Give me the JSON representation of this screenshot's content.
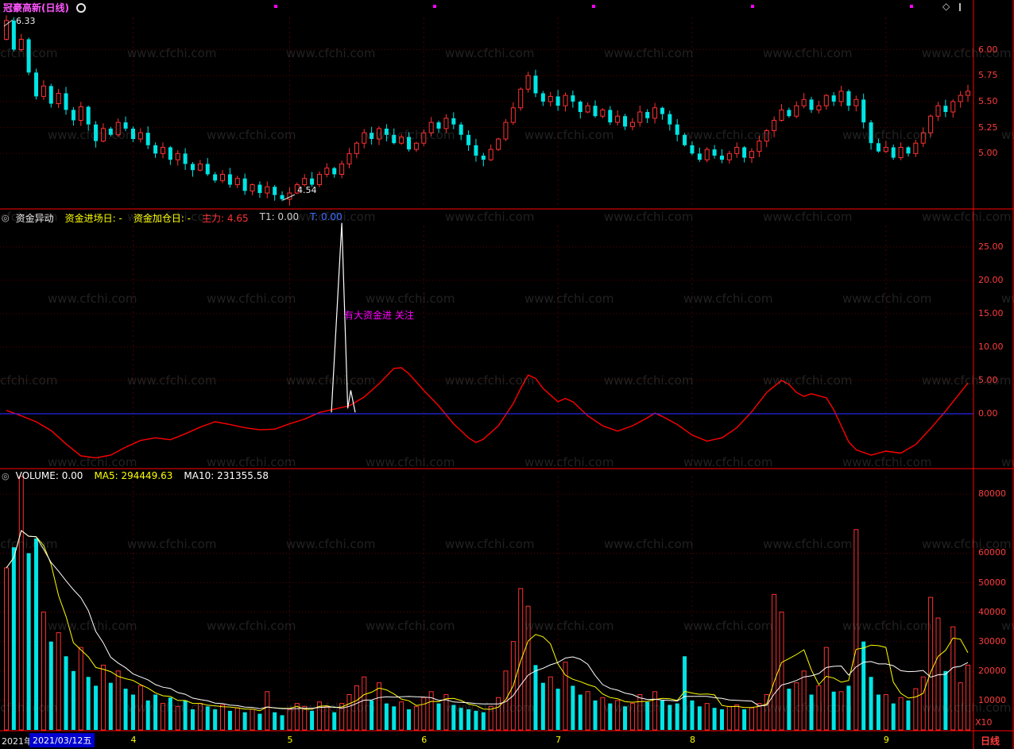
{
  "window": {
    "title": "冠豪高新(日线)",
    "period_label": "日线",
    "deco_diamond": "◇"
  },
  "watermark": {
    "text": "www.cfchi.com"
  },
  "colors": {
    "background": "#000000",
    "up": "#ff3232",
    "down": "#00e5e5",
    "axis_text": "#ff3c3c",
    "grid": "#5a0000",
    "divider": "#ff0000",
    "indicator_line": "#ff0000",
    "zero_line": "#2929ff",
    "spike_line": "#ffffff",
    "ma5": "#ffff00",
    "ma10": "#ffffff",
    "title_text": "#ff55ff",
    "highlight_bg": "#0000d0"
  },
  "price_panel": {
    "high_annotation": "6.33",
    "low_annotation": "4.54",
    "y_ticks": [
      {
        "label": "6.00",
        "value": 6.0
      },
      {
        "label": "5.75",
        "value": 5.75
      },
      {
        "label": "5.50",
        "value": 5.5
      },
      {
        "label": "5.25",
        "value": 5.25
      },
      {
        "label": "5.00",
        "value": 5.0
      }
    ]
  },
  "indicator_panel": {
    "name": "资金异动",
    "panel_icon": "◎",
    "labels": [
      {
        "text": "资金进场日: -",
        "color": "#ffff00"
      },
      {
        "text": "资金加仓日: -",
        "color": "#ffff00"
      },
      {
        "text": "主力: 4.65",
        "color": "#ff3232"
      },
      {
        "text": "T1: 0.00",
        "color": "#cccccc"
      },
      {
        "text": "T: 0.00",
        "color": "#3b6bff"
      }
    ],
    "annotation": "有大资金进 关注",
    "annotation_color": "#ff00ff",
    "y_ticks": [
      {
        "label": "25.00",
        "value": 25
      },
      {
        "label": "20.00",
        "value": 20
      },
      {
        "label": "15.00",
        "value": 15
      },
      {
        "label": "10.00",
        "value": 10
      },
      {
        "label": "5.00",
        "value": 5
      },
      {
        "label": "0.00",
        "value": 0
      }
    ]
  },
  "volume_panel": {
    "panel_icon": "◎",
    "labels": [
      {
        "text": "VOLUME: 0.00",
        "color": "#ffffff"
      },
      {
        "text": "MA5: 294449.63",
        "color": "#ffff00"
      },
      {
        "text": "MA10: 231355.58",
        "color": "#ffffff"
      }
    ],
    "unit_label": "X10",
    "y_ticks": [
      {
        "label": "80000",
        "value": 80000
      },
      {
        "label": "60000",
        "value": 60000
      },
      {
        "label": "50000",
        "value": 50000
      },
      {
        "label": "40000",
        "value": 40000
      },
      {
        "label": "30000",
        "value": 30000
      },
      {
        "label": "20000",
        "value": 20000
      },
      {
        "label": "10000",
        "value": 10000
      }
    ]
  },
  "bottom_bar": {
    "year": "2021年",
    "date": "2021/03/12五",
    "months": [
      {
        "label": "4",
        "index": 17
      },
      {
        "label": "5",
        "index": 38
      },
      {
        "label": "6",
        "index": 56
      },
      {
        "label": "7",
        "index": 74
      },
      {
        "label": "8",
        "index": 92
      },
      {
        "label": "9",
        "index": 118
      }
    ]
  },
  "chart_data": [
    {
      "type": "candlestick",
      "name": "daily-price",
      "title": "冠豪高新(日线)",
      "ylim": [
        4.49,
        6.31
      ],
      "annotated_high": 6.33,
      "annotated_low": 4.54,
      "first_open": 6.1,
      "overrides": {
        "0": {
          "high": 6.33
        },
        "37": {
          "low": 4.54
        }
      },
      "closes": [
        6.28,
        6.0,
        6.1,
        5.78,
        5.55,
        5.65,
        5.48,
        5.58,
        5.42,
        5.32,
        5.45,
        5.28,
        5.12,
        5.24,
        5.18,
        5.3,
        5.24,
        5.14,
        5.2,
        5.08,
        5.0,
        5.06,
        4.94,
        5.0,
        4.9,
        4.84,
        4.9,
        4.8,
        4.74,
        4.8,
        4.7,
        4.76,
        4.64,
        4.7,
        4.62,
        4.68,
        4.6,
        4.56,
        4.62,
        4.7,
        4.76,
        4.7,
        4.8,
        4.86,
        4.8,
        4.9,
        5.0,
        5.1,
        5.2,
        5.14,
        5.24,
        5.18,
        5.1,
        5.16,
        5.04,
        5.1,
        5.2,
        5.3,
        5.24,
        5.34,
        5.28,
        5.18,
        5.08,
        4.98,
        4.94,
        5.04,
        5.14,
        5.3,
        5.44,
        5.62,
        5.75,
        5.58,
        5.5,
        5.55,
        5.46,
        5.56,
        5.5,
        5.4,
        5.46,
        5.36,
        5.42,
        5.3,
        5.36,
        5.26,
        5.3,
        5.4,
        5.34,
        5.44,
        5.38,
        5.28,
        5.18,
        5.08,
        5.0,
        4.94,
        5.04,
        4.98,
        4.94,
        5.0,
        5.06,
        4.96,
        5.02,
        5.12,
        5.22,
        5.32,
        5.42,
        5.36,
        5.46,
        5.52,
        5.42,
        5.46,
        5.56,
        5.5,
        5.6,
        5.46,
        5.52,
        5.3,
        5.1,
        5.02,
        5.06,
        4.96,
        5.06,
        5.0,
        5.1,
        5.2,
        5.36,
        5.46,
        5.4,
        5.5,
        5.56,
        5.6
      ]
    },
    {
      "type": "line",
      "name": "fund-flow-indicator",
      "title": "资金异动",
      "ylim": [
        -7.98,
        28.2
      ],
      "series": [
        {
          "name": "indicator",
          "color": "#ff0000",
          "points": [
            [
              0,
              0.5
            ],
            [
              2,
              -0.3
            ],
            [
              4,
              -1.2
            ],
            [
              6,
              -2.5
            ],
            [
              8,
              -4.5
            ],
            [
              10,
              -6.3
            ],
            [
              12,
              -6.6
            ],
            [
              14,
              -6.2
            ],
            [
              16,
              -5.0
            ],
            [
              18,
              -4.0
            ],
            [
              20,
              -3.6
            ],
            [
              22,
              -3.9
            ],
            [
              24,
              -3.0
            ],
            [
              26,
              -2.0
            ],
            [
              28,
              -1.2
            ],
            [
              30,
              -1.6
            ],
            [
              32,
              -2.1
            ],
            [
              34,
              -2.4
            ],
            [
              36,
              -2.3
            ],
            [
              38,
              -1.5
            ],
            [
              40,
              -0.8
            ],
            [
              42,
              0.2
            ],
            [
              44,
              0.7
            ],
            [
              46,
              1.2
            ],
            [
              48,
              2.5
            ],
            [
              50,
              4.5
            ],
            [
              52,
              6.8
            ],
            [
              53,
              6.9
            ],
            [
              54,
              6.0
            ],
            [
              56,
              3.5
            ],
            [
              58,
              1.2
            ],
            [
              60,
              -1.5
            ],
            [
              62,
              -3.6
            ],
            [
              63,
              -4.3
            ],
            [
              64,
              -3.8
            ],
            [
              66,
              -1.8
            ],
            [
              68,
              1.5
            ],
            [
              69,
              3.8
            ],
            [
              70,
              5.8
            ],
            [
              71,
              5.3
            ],
            [
              72,
              3.8
            ],
            [
              74,
              1.8
            ],
            [
              75,
              2.3
            ],
            [
              76,
              1.8
            ],
            [
              78,
              -0.3
            ],
            [
              80,
              -1.8
            ],
            [
              82,
              -2.6
            ],
            [
              84,
              -1.8
            ],
            [
              86,
              -0.6
            ],
            [
              87,
              0.1
            ],
            [
              88,
              -0.4
            ],
            [
              90,
              -1.6
            ],
            [
              92,
              -3.2
            ],
            [
              94,
              -4.1
            ],
            [
              96,
              -3.6
            ],
            [
              98,
              -2.1
            ],
            [
              100,
              0.3
            ],
            [
              102,
              3.2
            ],
            [
              104,
              5.0
            ],
            [
              105,
              4.4
            ],
            [
              106,
              3.2
            ],
            [
              107,
              2.6
            ],
            [
              108,
              3.0
            ],
            [
              110,
              2.4
            ],
            [
              111,
              0.6
            ],
            [
              112,
              -1.8
            ],
            [
              113,
              -4.2
            ],
            [
              114,
              -5.4
            ],
            [
              116,
              -6.2
            ],
            [
              118,
              -5.6
            ],
            [
              120,
              -5.9
            ],
            [
              122,
              -4.6
            ],
            [
              124,
              -2.2
            ],
            [
              126,
              0.4
            ],
            [
              128,
              3.2
            ],
            [
              129,
              4.6
            ]
          ]
        },
        {
          "name": "spike",
          "color": "#ffffff",
          "points": [
            [
              43.6,
              0.2
            ],
            [
              45.0,
              28.6
            ],
            [
              45.8,
              0.8
            ],
            [
              46.2,
              3.5
            ],
            [
              46.8,
              0.2
            ]
          ]
        },
        {
          "name": "zero-line",
          "color": "#2929ff",
          "points": [
            [
              0,
              0
            ],
            [
              129,
              0
            ]
          ]
        }
      ]
    },
    {
      "type": "bar",
      "name": "volume",
      "title": "VOLUME",
      "ylim": [
        0,
        86000
      ],
      "ma5_window": 5,
      "ma10_window": 10,
      "values": [
        55000,
        62000,
        86000,
        60000,
        65000,
        40000,
        30000,
        33000,
        25000,
        20000,
        28000,
        18000,
        15000,
        22000,
        16000,
        20000,
        14000,
        12000,
        15000,
        10000,
        12000,
        9000,
        11000,
        8000,
        10000,
        7000,
        9000,
        8000,
        7000,
        8500,
        6500,
        7500,
        6000,
        7000,
        5500,
        13000,
        6000,
        5000,
        7000,
        9000,
        8000,
        6500,
        9500,
        8000,
        6000,
        9000,
        12000,
        15000,
        18000,
        10000,
        16000,
        9000,
        8000,
        9500,
        7000,
        8000,
        11000,
        13000,
        9000,
        12000,
        8500,
        7500,
        7000,
        6500,
        6000,
        8000,
        11000,
        20000,
        30000,
        48000,
        42000,
        22000,
        16000,
        18000,
        14000,
        23000,
        15000,
        12000,
        13000,
        10000,
        11000,
        9000,
        10000,
        8000,
        9000,
        12000,
        9500,
        13000,
        10000,
        8500,
        9000,
        25000,
        10000,
        8000,
        9000,
        7500,
        7000,
        8000,
        8500,
        7000,
        7500,
        9000,
        12000,
        46000,
        40000,
        14000,
        16000,
        20000,
        12000,
        15000,
        28000,
        13000,
        13000,
        15000,
        68000,
        30000,
        18000,
        12000,
        12000,
        9000,
        11000,
        10000,
        14000,
        18000,
        45000,
        38000,
        20000,
        35000,
        16000,
        22000
      ]
    }
  ]
}
